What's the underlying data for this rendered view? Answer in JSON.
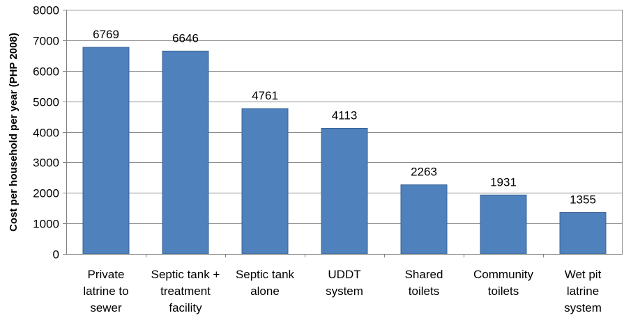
{
  "chart_data": {
    "type": "bar",
    "title": "",
    "xlabel": "",
    "ylabel": "Cost per household per year (PHP 2008)",
    "ylim": [
      0,
      8000
    ],
    "yticks": [
      0,
      1000,
      2000,
      3000,
      4000,
      5000,
      6000,
      7000,
      8000
    ],
    "grid": true,
    "legend": "none",
    "bar_color": "#4F81BD",
    "bar_edge_color": "#3A6496",
    "categories": [
      [
        "Private",
        "latrine to",
        "sewer"
      ],
      [
        "Septic tank +",
        "treatment",
        "facility"
      ],
      [
        "Septic tank",
        "alone"
      ],
      [
        "UDDT",
        "system"
      ],
      [
        "Shared",
        "toilets"
      ],
      [
        "Community",
        "toilets"
      ],
      [
        "Wet pit",
        "latrine",
        "system"
      ]
    ],
    "values": [
      6769,
      6646,
      4761,
      4113,
      2263,
      1931,
      1355
    ],
    "data_labels": [
      "6769",
      "6646",
      "4761",
      "4113",
      "2263",
      "1931",
      "1355"
    ]
  }
}
